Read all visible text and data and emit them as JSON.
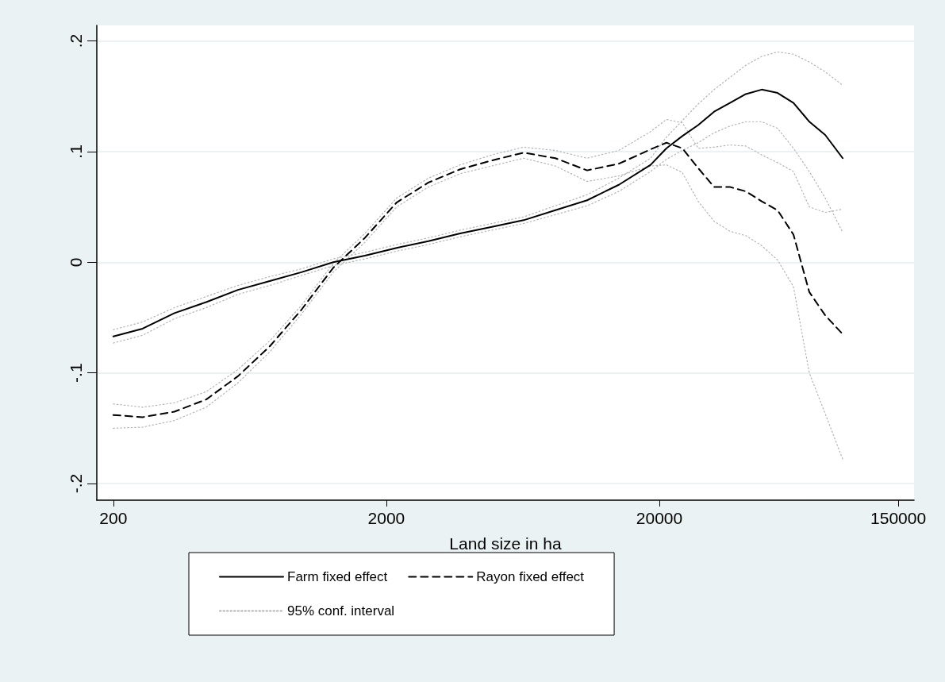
{
  "chart_data": {
    "type": "line",
    "xlabel": "Land size in ha",
    "x": [
      200,
      256,
      335,
      438,
      572,
      748,
      977,
      1278,
      1669,
      2182,
      2852,
      3728,
      4872,
      6368,
      8322,
      10876,
      14214,
      18580,
      21240,
      24280,
      27760,
      31740,
      36280,
      41500,
      47420,
      54220,
      61980,
      70860,
      81040,
      93900
    ],
    "log": "x",
    "xlim": [
      174,
      171400
    ],
    "xticks": [
      200,
      2000,
      20000,
      150000
    ],
    "ylim": [
      -0.215,
      0.214
    ],
    "yticks": [
      {
        "value": -0.2,
        "label": "-.2"
      },
      {
        "value": -0.1,
        "label": "-.1"
      },
      0,
      {
        "value": 0.1,
        "label": ".1"
      },
      {
        "value": 0.2,
        "label": ".2"
      }
    ],
    "grid": "y",
    "legend": "bottom",
    "marker": "none",
    "series": [
      {
        "name": "Farm fixed effect",
        "color": "#000000",
        "line_style": "solid",
        "values": [
          -0.067,
          -0.06,
          -0.046,
          -0.036,
          -0.025,
          -0.017,
          -0.009,
          0.0,
          0.006,
          0.013,
          0.019,
          0.026,
          0.032,
          0.038,
          0.047,
          0.056,
          0.07,
          0.088,
          0.103,
          0.114,
          0.124,
          0.136,
          0.144,
          0.152,
          0.156,
          0.153,
          0.144,
          0.127,
          0.115,
          0.094
        ]
      },
      {
        "name": "Rayon fixed effect",
        "color": "#000000",
        "line_style": "dashed",
        "values": [
          -0.138,
          -0.14,
          -0.135,
          -0.124,
          -0.103,
          -0.076,
          -0.043,
          -0.005,
          0.022,
          0.054,
          0.072,
          0.084,
          0.092,
          0.099,
          0.094,
          0.083,
          0.089,
          0.102,
          0.108,
          0.103,
          0.085,
          0.068,
          0.068,
          0.064,
          0.055,
          0.047,
          0.025,
          -0.027,
          -0.048,
          -0.065
        ]
      },
      {
        "name": "95% conf. interval",
        "color": "#b4b4b4",
        "line_style": "dotted",
        "values": [
          -0.061,
          -0.054,
          -0.041,
          -0.031,
          -0.021,
          -0.013,
          -0.006,
          0.003,
          0.009,
          0.016,
          0.022,
          0.029,
          0.035,
          0.041,
          0.051,
          0.061,
          0.076,
          0.094,
          0.113,
          0.128,
          0.143,
          0.156,
          0.167,
          0.178,
          0.186,
          0.19,
          0.188,
          0.181,
          0.172,
          0.16
        ]
      },
      {
        "color": "#b4b4b4",
        "line_style": "dotted",
        "values": [
          -0.073,
          -0.066,
          -0.051,
          -0.041,
          -0.029,
          -0.021,
          -0.012,
          -0.003,
          0.003,
          0.01,
          0.016,
          0.023,
          0.029,
          0.035,
          0.043,
          0.051,
          0.064,
          0.082,
          0.093,
          0.101,
          0.108,
          0.117,
          0.123,
          0.127,
          0.127,
          0.121,
          0.103,
          0.082,
          0.058,
          0.027
        ]
      },
      {
        "color": "#b4b4b4",
        "line_style": "dotted",
        "values": [
          -0.128,
          -0.131,
          -0.127,
          -0.117,
          -0.097,
          -0.071,
          -0.039,
          -0.001,
          0.026,
          0.058,
          0.076,
          0.088,
          0.097,
          0.104,
          0.101,
          0.094,
          0.101,
          0.118,
          0.129,
          0.126,
          0.103,
          0.104,
          0.106,
          0.105,
          0.097,
          0.09,
          0.082,
          0.05,
          0.045,
          0.048
        ]
      },
      {
        "color": "#b4b4b4",
        "line_style": "dotted",
        "values": [
          -0.15,
          -0.149,
          -0.143,
          -0.131,
          -0.109,
          -0.081,
          -0.047,
          -0.009,
          0.018,
          0.05,
          0.068,
          0.08,
          0.087,
          0.094,
          0.087,
          0.073,
          0.078,
          0.087,
          0.088,
          0.081,
          0.055,
          0.037,
          0.028,
          0.024,
          0.015,
          0.002,
          -0.022,
          -0.1,
          -0.137,
          -0.178
        ]
      }
    ]
  }
}
